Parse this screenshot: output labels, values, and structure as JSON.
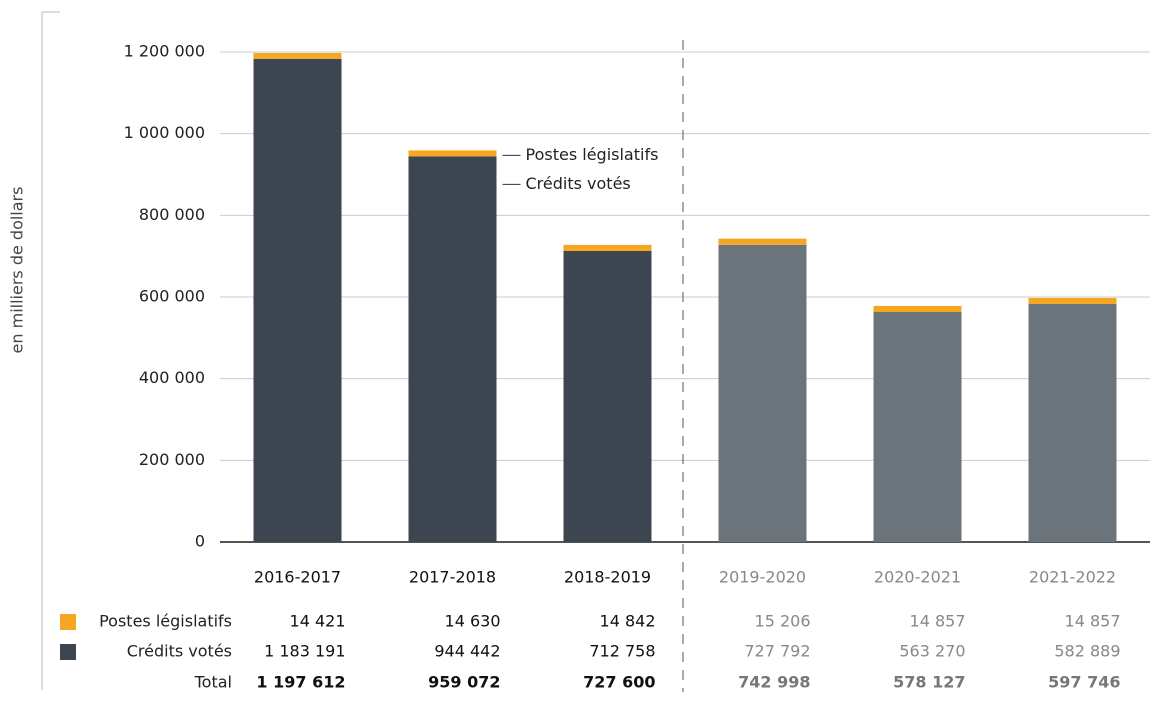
{
  "chart_data": {
    "type": "stacked_bar",
    "y_axis_label": "en milliers de dollars",
    "categories": [
      "2016-2017",
      "2017-2018",
      "2018-2019",
      "2019-2020",
      "2020-2021",
      "2021-2022"
    ],
    "forecast": [
      false,
      false,
      false,
      true,
      true,
      true
    ],
    "series": [
      {
        "name": "Postes législatifs",
        "color": "#f5a623",
        "forecast_color": "#f5a623",
        "values": [
          14421,
          14630,
          14842,
          15206,
          14857,
          14857
        ],
        "value_labels": [
          "14 421",
          "14 630",
          "14 842",
          "15 206",
          "14 857",
          "14 857"
        ]
      },
      {
        "name": "Crédits votés",
        "color": "#3d4650",
        "forecast_color": "#6b737b",
        "values": [
          1183191,
          944442,
          712758,
          727792,
          563270,
          582889
        ],
        "value_labels": [
          "1 183 191",
          "944 442",
          "712 758",
          "727 792",
          "563 270",
          "582 889"
        ]
      }
    ],
    "total_label": "Total",
    "totals": [
      "1 197 612",
      "959 072",
      "727 600",
      "742 998",
      "578 127",
      "597 746"
    ],
    "ylim": [
      0,
      1200000
    ],
    "yticks": [
      0,
      {
        "value": 200000,
        "label": "200 000"
      },
      {
        "value": 400000,
        "label": "400 000"
      },
      {
        "value": 600000,
        "label": "600 000"
      },
      {
        "value": 800000,
        "label": "800 000"
      },
      {
        "value": 1000000,
        "label": "1 000 000"
      },
      {
        "value": 1200000,
        "label": "1 200 000"
      }
    ],
    "grid": true
  }
}
